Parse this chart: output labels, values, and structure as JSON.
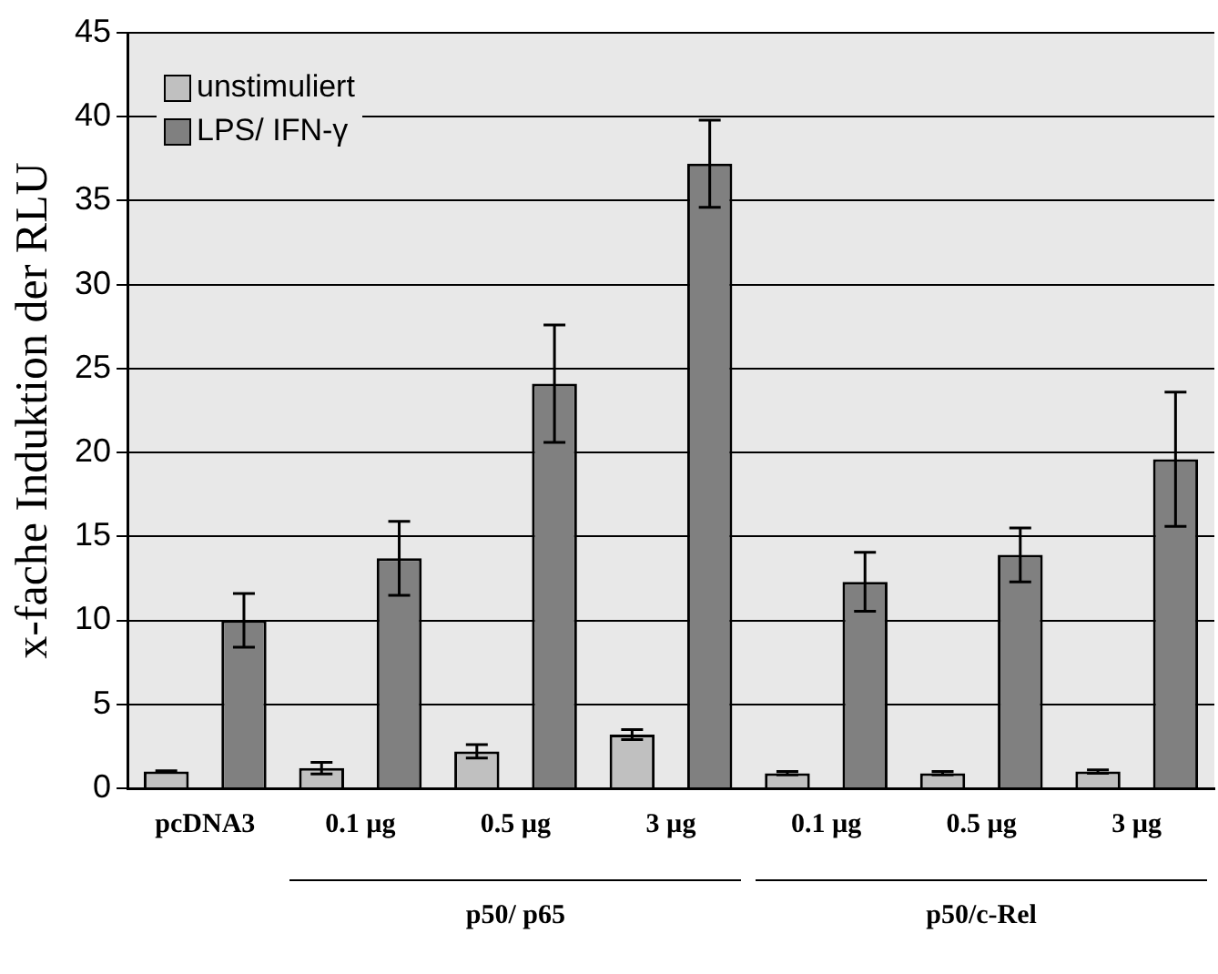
{
  "chart_data": {
    "type": "bar",
    "ylabel": "x-fache Induktion der RLU",
    "categories": [
      "pcDNA3",
      "0.1 µg",
      "0.5 µg",
      "3 µg",
      "0.1 µg",
      "0.5 µg",
      "3 µg"
    ],
    "series": [
      {
        "name": "unstimuliert",
        "color": "#c0c0c0",
        "values": [
          1.0,
          1.2,
          2.2,
          3.2,
          0.9,
          0.9,
          1.0
        ],
        "errors": [
          0.05,
          0.35,
          0.4,
          0.3,
          0.1,
          0.1,
          0.1
        ]
      },
      {
        "name": "LPS/ IFN-γ",
        "color": "#808080",
        "values": [
          10.0,
          13.7,
          24.1,
          37.2,
          12.3,
          13.9,
          19.6
        ],
        "errors": [
          1.6,
          2.2,
          3.5,
          2.6,
          1.75,
          1.6,
          4.0
        ]
      }
    ],
    "ylim": [
      0,
      45
    ],
    "yticks": [
      0,
      5,
      10,
      15,
      20,
      25,
      30,
      35,
      40,
      45
    ],
    "grid": "y",
    "legend": "top left",
    "annotations": [
      "p50/ p65",
      "p50/c-Rel"
    ]
  }
}
